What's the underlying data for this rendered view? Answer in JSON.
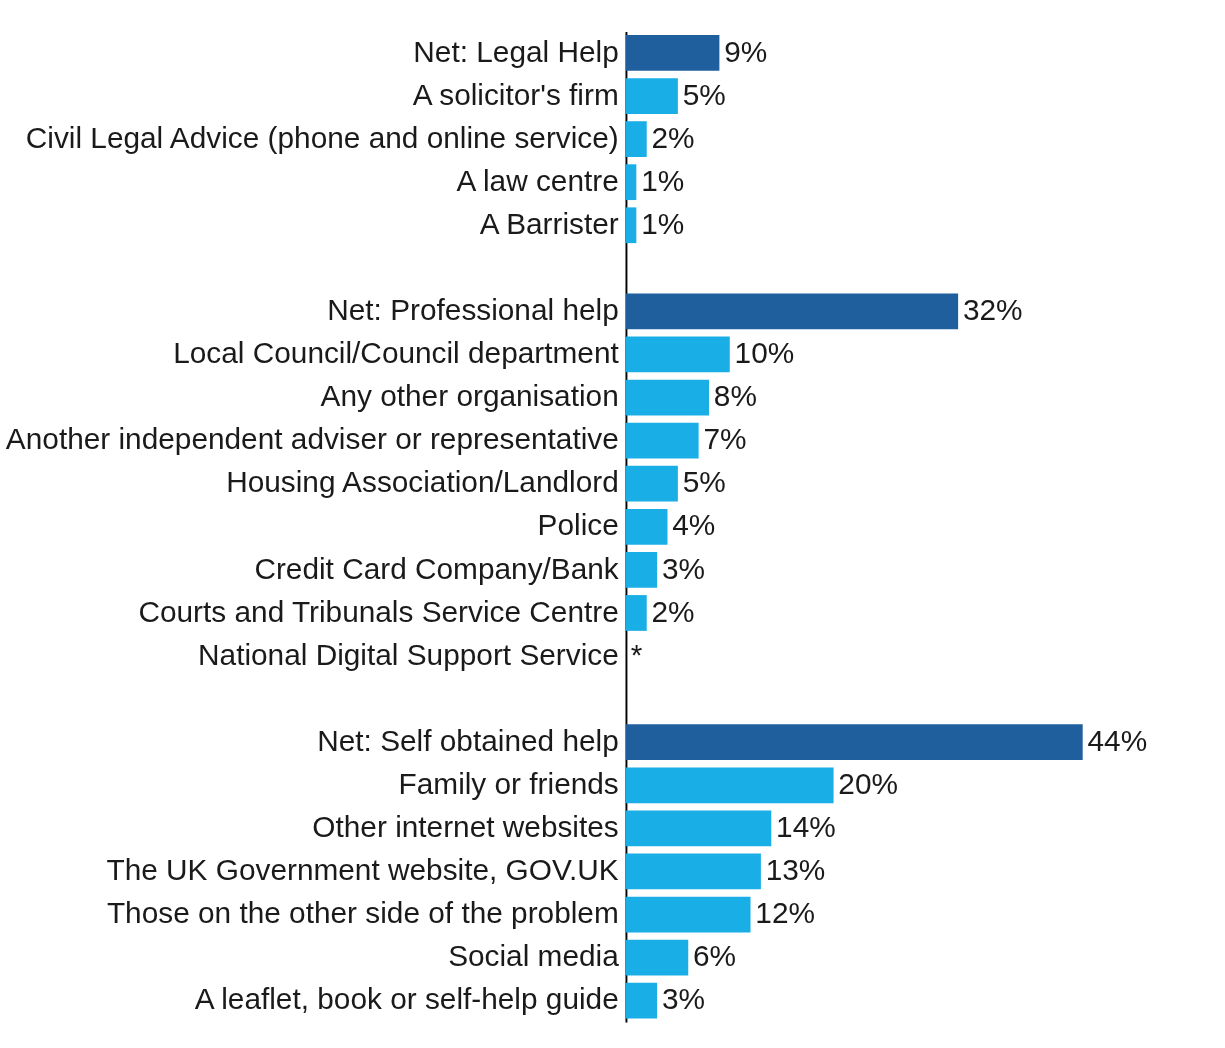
{
  "chart_data": {
    "type": "bar",
    "orientation": "horizontal",
    "categories": [
      "Net: Legal Help",
      "A solicitor's firm",
      "Civil Legal Advice (phone and online service)",
      "A law centre",
      "A Barrister",
      null,
      "Net: Professional help",
      "Local Council/Council department",
      "Any other organisation",
      "Another independent adviser or representative",
      "Housing Association/Landlord",
      "Police",
      "Credit Card Company/Bank",
      "Courts and Tribunals Service Centre",
      "National Digital Support Service",
      null,
      "Net: Self obtained help",
      "Family or friends",
      "Other internet websites",
      "The UK Government website, GOV.UK",
      "Those on the other side of the problem",
      "Social media",
      "A leaflet, book or self-help guide"
    ],
    "values": [
      9,
      5,
      2,
      1,
      1,
      null,
      32,
      10,
      8,
      7,
      5,
      4,
      3,
      2,
      null,
      null,
      44,
      20,
      14,
      13,
      12,
      6,
      3
    ],
    "value_labels": [
      "9%",
      "5%",
      "2%",
      "1%",
      "1%",
      null,
      "32%",
      "10%",
      "8%",
      "7%",
      "5%",
      "4%",
      "3%",
      "2%",
      "*",
      null,
      "44%",
      "20%",
      "14%",
      "13%",
      "12%",
      "6%",
      "3%"
    ],
    "colors": [
      "#1f5f9e",
      "#1aaee6",
      "#1aaee6",
      "#1aaee6",
      "#1aaee6",
      null,
      "#1f5f9e",
      "#1aaee6",
      "#1aaee6",
      "#1aaee6",
      "#1aaee6",
      "#1aaee6",
      "#1aaee6",
      "#1aaee6",
      "#1aaee6",
      null,
      "#1f5f9e",
      "#1aaee6",
      "#1aaee6",
      "#1aaee6",
      "#1aaee6",
      "#1aaee6",
      "#1aaee6"
    ],
    "grid": false
  }
}
